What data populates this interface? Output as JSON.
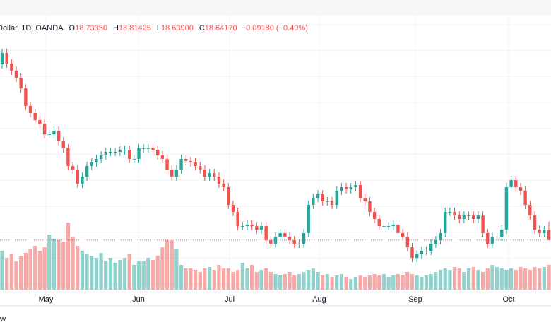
{
  "chart_data": {
    "type": "candlestick",
    "header": {
      "symbol": "Dollar, 1D, OANDA",
      "ohlc": [
        {
          "label": "O",
          "value": "18.73350"
        },
        {
          "label": "H",
          "value": "18.81425"
        },
        {
          "label": "L",
          "value": "18.63900"
        },
        {
          "label": "C",
          "value": "18.64170"
        }
      ],
      "change": "−0.09180 (−0.49%)"
    },
    "x_labels": [
      "May",
      "Jun",
      "Jul",
      "Aug",
      "Sep",
      "Oct"
    ],
    "footer": "w",
    "up_color": "#26a69a",
    "down_color": "#ef5350",
    "ylim": [
      18.24,
      20.64
    ],
    "vlim": [
      0,
      100
    ],
    "open": [
      20.3,
      20.407,
      20.307,
      20.24,
      20.173,
      20.073,
      19.907,
      19.84,
      19.773,
      19.74,
      19.64,
      19.64,
      19.673,
      19.573,
      19.507,
      19.34,
      19.307,
      19.173,
      19.24,
      19.34,
      19.373,
      19.407,
      19.44,
      19.473,
      19.473,
      19.473,
      19.487,
      19.493,
      19.407,
      19.407,
      19.507,
      19.507,
      19.507,
      19.493,
      19.44,
      19.407,
      19.307,
      19.24,
      19.307,
      19.407,
      19.387,
      19.373,
      19.34,
      19.307,
      19.24,
      19.273,
      19.24,
      19.173,
      19.14,
      18.973,
      18.907,
      18.773,
      18.773,
      18.787,
      18.773,
      18.74,
      18.773,
      18.64,
      18.607,
      18.673,
      18.707,
      18.673,
      18.64,
      18.607,
      18.607,
      18.707,
      18.973,
      19.04,
      19.073,
      19.007,
      19.007,
      18.973,
      19.107,
      19.14,
      19.12,
      19.14,
      19.16,
      19.04,
      19.007,
      18.907,
      18.84,
      18.773,
      18.773,
      18.773,
      18.787,
      18.707,
      18.673,
      18.573,
      18.473,
      18.507,
      18.54,
      18.54,
      18.607,
      18.64,
      18.707,
      18.907,
      18.907,
      18.873,
      18.84,
      18.873,
      18.873,
      18.84,
      18.873,
      18.707,
      18.607,
      18.673,
      18.673,
      18.74,
      19.14,
      19.207,
      19.14,
      19.107,
      18.973,
      18.873,
      18.74,
      18.707,
      18.7335
    ],
    "high": [
      20.447,
      20.447,
      20.347,
      20.28,
      20.213,
      20.113,
      19.947,
      19.88,
      19.813,
      19.78,
      19.68,
      19.713,
      19.713,
      19.613,
      19.547,
      19.38,
      19.347,
      19.28,
      19.38,
      19.413,
      19.447,
      19.48,
      19.513,
      19.513,
      19.513,
      19.527,
      19.533,
      19.533,
      19.447,
      19.547,
      19.547,
      19.547,
      19.547,
      19.533,
      19.48,
      19.447,
      19.347,
      19.347,
      19.447,
      19.447,
      19.427,
      19.413,
      19.38,
      19.347,
      19.313,
      19.313,
      19.28,
      19.213,
      19.18,
      19.013,
      18.947,
      18.813,
      18.827,
      18.827,
      18.813,
      18.813,
      18.813,
      18.68,
      18.713,
      18.747,
      18.747,
      18.713,
      18.68,
      18.647,
      18.747,
      19.013,
      19.08,
      19.113,
      19.113,
      19.047,
      19.047,
      19.147,
      19.18,
      19.18,
      19.18,
      19.2,
      19.2,
      19.08,
      19.047,
      18.947,
      18.88,
      18.813,
      18.813,
      18.827,
      18.827,
      18.747,
      18.713,
      18.613,
      18.547,
      18.58,
      18.58,
      18.647,
      18.68,
      18.747,
      18.947,
      18.947,
      18.947,
      18.913,
      18.913,
      18.913,
      18.913,
      18.913,
      18.913,
      18.747,
      18.713,
      18.713,
      18.78,
      19.18,
      19.247,
      19.247,
      19.18,
      19.147,
      19.013,
      18.913,
      18.78,
      18.7735,
      18.81425
    ],
    "low": [
      20.26,
      20.267,
      20.2,
      20.133,
      20.033,
      19.867,
      19.8,
      19.733,
      19.7,
      19.6,
      19.6,
      19.6,
      19.533,
      19.467,
      19.3,
      19.267,
      19.133,
      19.133,
      19.2,
      19.3,
      19.333,
      19.367,
      19.4,
      19.433,
      19.433,
      19.433,
      19.447,
      19.367,
      19.367,
      19.367,
      19.467,
      19.467,
      19.453,
      19.4,
      19.367,
      19.267,
      19.2,
      19.2,
      19.267,
      19.347,
      19.333,
      19.3,
      19.267,
      19.2,
      19.2,
      19.2,
      19.133,
      19.1,
      18.933,
      18.867,
      18.733,
      18.733,
      18.733,
      18.733,
      18.7,
      18.7,
      18.6,
      18.567,
      18.567,
      18.633,
      18.633,
      18.6,
      18.567,
      18.567,
      18.567,
      18.667,
      18.933,
      19.0,
      18.967,
      18.967,
      18.933,
      18.933,
      19.067,
      19.08,
      19.08,
      19.1,
      19.0,
      18.967,
      18.867,
      18.8,
      18.733,
      18.733,
      18.733,
      18.733,
      18.667,
      18.633,
      18.533,
      18.433,
      18.433,
      18.467,
      18.5,
      18.5,
      18.567,
      18.6,
      18.667,
      18.867,
      18.833,
      18.8,
      18.8,
      18.833,
      18.8,
      18.8,
      18.667,
      18.567,
      18.567,
      18.633,
      18.633,
      18.7,
      19.1,
      19.1,
      19.067,
      18.933,
      18.833,
      18.7,
      18.667,
      18.667,
      18.639
    ],
    "close": [
      20.407,
      20.307,
      20.24,
      20.173,
      20.073,
      19.907,
      19.84,
      19.773,
      19.74,
      19.64,
      19.64,
      19.673,
      19.573,
      19.507,
      19.34,
      19.307,
      19.173,
      19.24,
      19.34,
      19.373,
      19.407,
      19.44,
      19.473,
      19.473,
      19.473,
      19.487,
      19.493,
      19.407,
      19.407,
      19.507,
      19.507,
      19.507,
      19.493,
      19.44,
      19.407,
      19.307,
      19.24,
      19.307,
      19.407,
      19.387,
      19.373,
      19.34,
      19.307,
      19.24,
      19.273,
      19.24,
      19.173,
      19.14,
      18.973,
      18.907,
      18.773,
      18.773,
      18.787,
      18.773,
      18.74,
      18.773,
      18.64,
      18.607,
      18.673,
      18.707,
      18.673,
      18.64,
      18.607,
      18.607,
      18.707,
      18.973,
      19.04,
      19.073,
      19.007,
      19.007,
      18.973,
      19.107,
      19.14,
      19.12,
      19.14,
      19.16,
      19.04,
      19.007,
      18.907,
      18.84,
      18.773,
      18.773,
      18.773,
      18.787,
      18.707,
      18.673,
      18.573,
      18.473,
      18.507,
      18.54,
      18.54,
      18.607,
      18.64,
      18.707,
      18.907,
      18.907,
      18.873,
      18.84,
      18.873,
      18.873,
      18.84,
      18.873,
      18.707,
      18.607,
      18.673,
      18.673,
      18.74,
      19.14,
      19.207,
      19.14,
      19.107,
      18.973,
      18.873,
      18.74,
      18.707,
      18.7335,
      18.6417
    ],
    "volume": [
      55,
      45,
      50,
      40,
      48,
      52,
      58,
      62,
      55,
      60,
      78,
      72,
      70,
      68,
      95,
      75,
      62,
      55,
      50,
      48,
      45,
      52,
      40,
      45,
      38,
      42,
      45,
      50,
      35,
      40,
      40,
      45,
      42,
      48,
      60,
      70,
      70,
      58,
      35,
      30,
      30,
      28,
      25,
      30,
      32,
      28,
      35,
      30,
      30,
      25,
      28,
      38,
      30,
      35,
      25,
      28,
      30,
      25,
      22,
      20,
      22,
      25,
      20,
      22,
      25,
      28,
      30,
      25,
      20,
      22,
      18,
      20,
      22,
      18,
      15,
      18,
      20,
      18,
      20,
      22,
      20,
      22,
      18,
      20,
      22,
      20,
      25,
      22,
      20,
      18,
      20,
      22,
      25,
      28,
      30,
      28,
      32,
      30,
      25,
      30,
      32,
      28,
      25,
      30,
      35,
      32,
      30,
      28,
      30,
      28,
      32,
      30,
      28,
      32,
      30,
      32,
      35
    ]
  }
}
